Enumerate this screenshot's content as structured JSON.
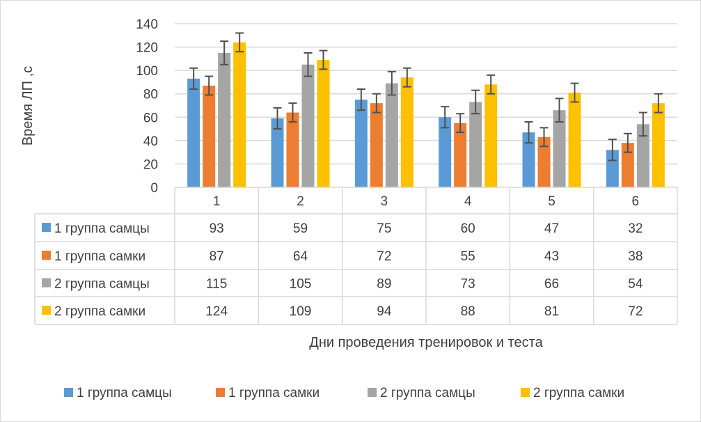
{
  "chart_data": {
    "type": "bar",
    "ylabel": "Время ЛП ,с",
    "xlabel": "Дни проведения тренировок и теста",
    "categories": [
      "1",
      "2",
      "3",
      "4",
      "5",
      "6"
    ],
    "ylim": [
      0,
      140
    ],
    "yticks": [
      0,
      20,
      40,
      60,
      80,
      100,
      120,
      140
    ],
    "grid": true,
    "legend_position": "bottom",
    "data_table": true,
    "series": [
      {
        "name": "1 группа самцы",
        "color": "#5b9bd5",
        "values": [
          93,
          59,
          75,
          60,
          47,
          32
        ],
        "errors": [
          9,
          9,
          9,
          9,
          9,
          9
        ]
      },
      {
        "name": "1 группа самки",
        "color": "#ed7d31",
        "values": [
          87,
          64,
          72,
          55,
          43,
          38
        ],
        "errors": [
          8,
          8,
          8,
          8,
          8,
          8
        ]
      },
      {
        "name": "2 группа самцы",
        "color": "#a5a5a5",
        "values": [
          115,
          105,
          89,
          73,
          66,
          54
        ],
        "errors": [
          10,
          10,
          10,
          10,
          10,
          10
        ]
      },
      {
        "name": "2 группа самки",
        "color": "#ffc000",
        "values": [
          124,
          109,
          94,
          88,
          81,
          72
        ],
        "errors": [
          8,
          8,
          8,
          8,
          8,
          8
        ]
      }
    ]
  }
}
